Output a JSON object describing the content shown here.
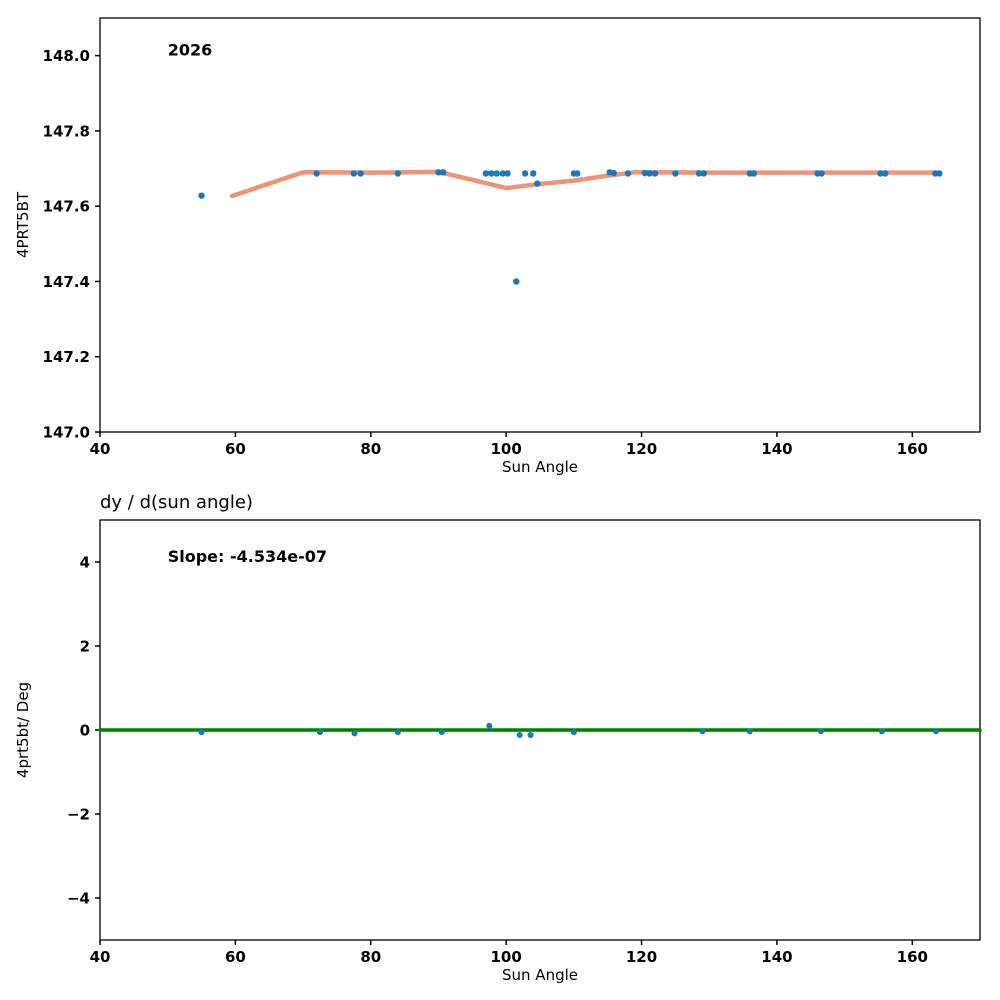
{
  "figure": {
    "background": "#ffffff",
    "scatter_color": "#1f77b4",
    "trend_color": "#e9967a",
    "slope_line_color": "#008000"
  },
  "chart_data": [
    {
      "type": "scatter",
      "title": "",
      "annotation": {
        "text": "2026",
        "x": 50,
        "y": 148.0
      },
      "xlabel": "Sun Angle",
      "ylabel": "4PRT5BT",
      "xlim": [
        40,
        170
      ],
      "ylim": [
        147.0,
        148.1
      ],
      "grid": false,
      "xticks": [
        40,
        60,
        80,
        100,
        120,
        140,
        160
      ],
      "xtick_labels": [
        "40",
        "60",
        "80",
        "100",
        "120",
        "140",
        "160"
      ],
      "yticks": [
        147.0,
        147.2,
        147.4,
        147.6,
        147.8,
        148.0
      ],
      "ytick_labels": [
        "147.0",
        "147.2",
        "147.4",
        "147.6",
        "147.8",
        "148.0"
      ],
      "series": [
        {
          "name": "trend-line",
          "kind": "line",
          "color": "#e9967a",
          "width": 4.5,
          "points": [
            [
              59.5,
              147.627
            ],
            [
              70,
              147.69
            ],
            [
              80,
              147.689
            ],
            [
              90,
              147.691
            ],
            [
              95,
              147.67
            ],
            [
              100,
              147.648
            ],
            [
              105,
              147.659
            ],
            [
              110,
              147.668
            ],
            [
              115,
              147.681
            ],
            [
              119,
              147.69
            ],
            [
              130,
              147.689
            ],
            [
              140,
              147.689
            ],
            [
              150,
              147.689
            ],
            [
              164,
              147.689
            ]
          ]
        },
        {
          "name": "measurements",
          "kind": "scatter",
          "color": "#1f77b4",
          "radius": 3.2,
          "points": [
            [
              55,
              147.628
            ],
            [
              72,
              147.687
            ],
            [
              77.5,
              147.687
            ],
            [
              78.5,
              147.687
            ],
            [
              84,
              147.687
            ],
            [
              90,
              147.69
            ],
            [
              90.7,
              147.69
            ],
            [
              97,
              147.687
            ],
            [
              97.8,
              147.687
            ],
            [
              98.6,
              147.687
            ],
            [
              99.5,
              147.687
            ],
            [
              100.2,
              147.687
            ],
            [
              101.5,
              147.4
            ],
            [
              102.8,
              147.687
            ],
            [
              104,
              147.687
            ],
            [
              104.6,
              147.66
            ],
            [
              110,
              147.687
            ],
            [
              110.5,
              147.687
            ],
            [
              115.3,
              147.69
            ],
            [
              115.9,
              147.688
            ],
            [
              118,
              147.687
            ],
            [
              120.5,
              147.688
            ],
            [
              121.2,
              147.687
            ],
            [
              122,
              147.687
            ],
            [
              125,
              147.687
            ],
            [
              128.5,
              147.687
            ],
            [
              129.2,
              147.687
            ],
            [
              136,
              147.687
            ],
            [
              136.6,
              147.687
            ],
            [
              146,
              147.687
            ],
            [
              146.6,
              147.687
            ],
            [
              155.3,
              147.687
            ],
            [
              156,
              147.687
            ],
            [
              163.4,
              147.687
            ],
            [
              164,
              147.687
            ]
          ]
        }
      ]
    },
    {
      "type": "scatter",
      "title": "dy / d(sun angle)",
      "annotation": {
        "text": "Slope: -4.534e-07",
        "x": 50,
        "y": 4.0
      },
      "xlabel": "Sun Angle",
      "ylabel": "4prt5bt/ Deg",
      "xlim": [
        40,
        170
      ],
      "ylim": [
        -5,
        5
      ],
      "grid": false,
      "xticks": [
        40,
        60,
        80,
        100,
        120,
        140,
        160
      ],
      "xtick_labels": [
        "40",
        "60",
        "80",
        "100",
        "120",
        "140",
        "160"
      ],
      "yticks": [
        -4,
        -2,
        0,
        2,
        4
      ],
      "ytick_labels": [
        "−4",
        "−2",
        "0",
        "2",
        "4"
      ],
      "series": [
        {
          "name": "slope-line",
          "kind": "line",
          "color": "#008000",
          "width": 3.5,
          "points": [
            [
              40,
              0
            ],
            [
              170,
              0
            ]
          ]
        },
        {
          "name": "derivatives",
          "kind": "scatter",
          "color": "#1f77b4",
          "radius": 3,
          "points": [
            [
              55,
              -0.05
            ],
            [
              72.5,
              -0.05
            ],
            [
              77.6,
              -0.08
            ],
            [
              84,
              -0.05
            ],
            [
              90.5,
              -0.05
            ],
            [
              97.5,
              0.1
            ],
            [
              102,
              -0.12
            ],
            [
              103.6,
              -0.12
            ],
            [
              110,
              -0.05
            ],
            [
              129,
              -0.03
            ],
            [
              136,
              -0.03
            ],
            [
              146.5,
              -0.03
            ],
            [
              155.5,
              -0.03
            ],
            [
              163.5,
              -0.03
            ]
          ]
        }
      ]
    }
  ]
}
